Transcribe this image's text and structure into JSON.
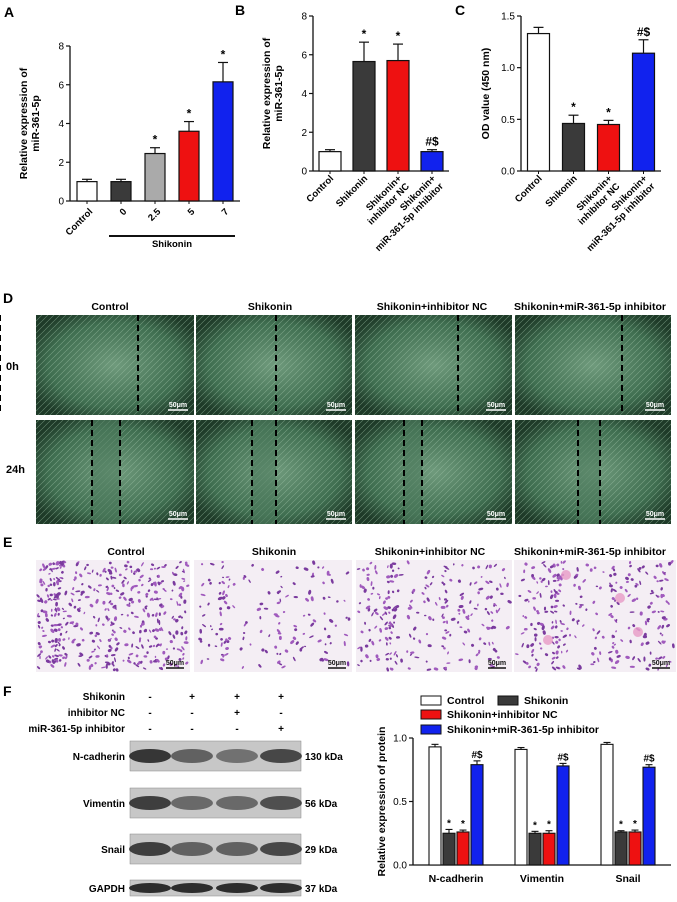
{
  "panels": {
    "A": "A",
    "B": "B",
    "C": "C",
    "D": "D",
    "E": "E",
    "F": "F"
  },
  "colors": {
    "white": "#ffffff",
    "grey": "#aaaaaa",
    "dark": "#3a3a3a",
    "red": "#ee1111",
    "blue": "#1122ee"
  },
  "chart_data": [
    {
      "id": "A",
      "type": "bar",
      "categories": [
        "Control",
        "0",
        "2.5",
        "5",
        "7"
      ],
      "group_label": "Shikonin",
      "values": [
        1.0,
        1.0,
        2.45,
        3.6,
        6.15
      ],
      "errors": [
        0.12,
        0.12,
        0.3,
        0.5,
        1.0
      ],
      "colors": [
        "#ffffff",
        "#3a3a3a",
        "#aaaaaa",
        "#ee1111",
        "#1122ee"
      ],
      "sig": [
        "",
        "",
        "*",
        "*",
        "*"
      ],
      "ylabel": "Relative expression of\nmiR-361-5p",
      "ylim": [
        0,
        8
      ],
      "yticks": [
        "0",
        "2",
        "4",
        "6",
        "8"
      ]
    },
    {
      "id": "B",
      "type": "bar",
      "categories": [
        "Control",
        "Shikonin",
        "Shikonin+\ninhibitor NC",
        "Shikonin+\nmiR-361-5p inhibitor"
      ],
      "values": [
        1.0,
        5.65,
        5.7,
        1.0
      ],
      "errors": [
        0.1,
        1.0,
        0.85,
        0.1
      ],
      "colors": [
        "#ffffff",
        "#3a3a3a",
        "#ee1111",
        "#1122ee"
      ],
      "sig": [
        "",
        "*",
        "*",
        "#$"
      ],
      "ylabel": "Relative expression of\nmiR-361-5p",
      "ylim": [
        0,
        8
      ],
      "yticks": [
        "0",
        "2",
        "4",
        "6",
        "8"
      ]
    },
    {
      "id": "C",
      "type": "bar",
      "categories": [
        "Control",
        "Shikonin",
        "Shikonin+\ninhibitor NC",
        "Shikonin+\nmiR-361-5p inhibitor"
      ],
      "values": [
        1.33,
        0.46,
        0.45,
        1.14
      ],
      "errors": [
        0.06,
        0.08,
        0.04,
        0.13
      ],
      "colors": [
        "#ffffff",
        "#3a3a3a",
        "#ee1111",
        "#1122ee"
      ],
      "sig": [
        "",
        "*",
        "*",
        "#$"
      ],
      "ylabel": "OD value (450 nm)",
      "ylim": [
        0,
        1.5
      ],
      "yticks": [
        "0.0",
        "0.5",
        "1.0",
        "1.5"
      ]
    },
    {
      "id": "F",
      "type": "bar",
      "categories": [
        "N-cadherin",
        "Vimentin",
        "Snail"
      ],
      "series": [
        {
          "name": "Control",
          "values": [
            0.93,
            0.91,
            0.95
          ],
          "errors": [
            0.02,
            0.015,
            0.015
          ],
          "color": "#ffffff",
          "sig": [
            "",
            "",
            ""
          ]
        },
        {
          "name": "Shikonin",
          "values": [
            0.25,
            0.25,
            0.26
          ],
          "errors": [
            0.03,
            0.015,
            0.01
          ],
          "color": "#3a3a3a",
          "sig": [
            "*",
            "*",
            "*"
          ]
        },
        {
          "name": "Shikonin+inhibitor NC",
          "values": [
            0.26,
            0.25,
            0.26
          ],
          "errors": [
            0.015,
            0.02,
            0.015
          ],
          "color": "#ee1111",
          "sig": [
            "*",
            "*",
            "*"
          ]
        },
        {
          "name": "Shikonin+miR-361-5p inhibitor",
          "values": [
            0.79,
            0.78,
            0.77
          ],
          "errors": [
            0.03,
            0.02,
            0.02
          ],
          "color": "#1122ee",
          "sig": [
            "#$",
            "#$",
            "#$"
          ]
        }
      ],
      "ylabel": "Relative expression of protein",
      "ylim": [
        0,
        1.0
      ],
      "yticks": [
        "0.0",
        "0.5",
        "1.0"
      ],
      "legend": "top"
    }
  ],
  "D": {
    "columns": [
      "Control",
      "Shikonin",
      "Shikonin+inhibitor NC",
      "Shikonin+miR-361-5p inhibitor"
    ],
    "rows": [
      "0h",
      "24h"
    ],
    "scalebar": "50μm"
  },
  "E": {
    "columns": [
      "Control",
      "Shikonin",
      "Shikonin+inhibitor NC",
      "Shikonin+miR-361-5p inhibitor"
    ],
    "scalebar": "50μm"
  },
  "F_blot": {
    "treatments": [
      {
        "label": "Shikonin",
        "signs": [
          "-",
          "+",
          "+",
          "+"
        ]
      },
      {
        "label": "inhibitor NC",
        "signs": [
          "-",
          "-",
          "+",
          "-"
        ]
      },
      {
        "label": "miR-361-5p inhibitor",
        "signs": [
          "-",
          "-",
          "-",
          "+"
        ]
      }
    ],
    "bands": [
      {
        "protein": "N-cadherin",
        "kda": "130 kDa"
      },
      {
        "protein": "Vimentin",
        "kda": "56 kDa"
      },
      {
        "protein": "Snail",
        "kda": "29 kDa"
      },
      {
        "protein": "GAPDH",
        "kda": "37 kDa"
      }
    ]
  }
}
